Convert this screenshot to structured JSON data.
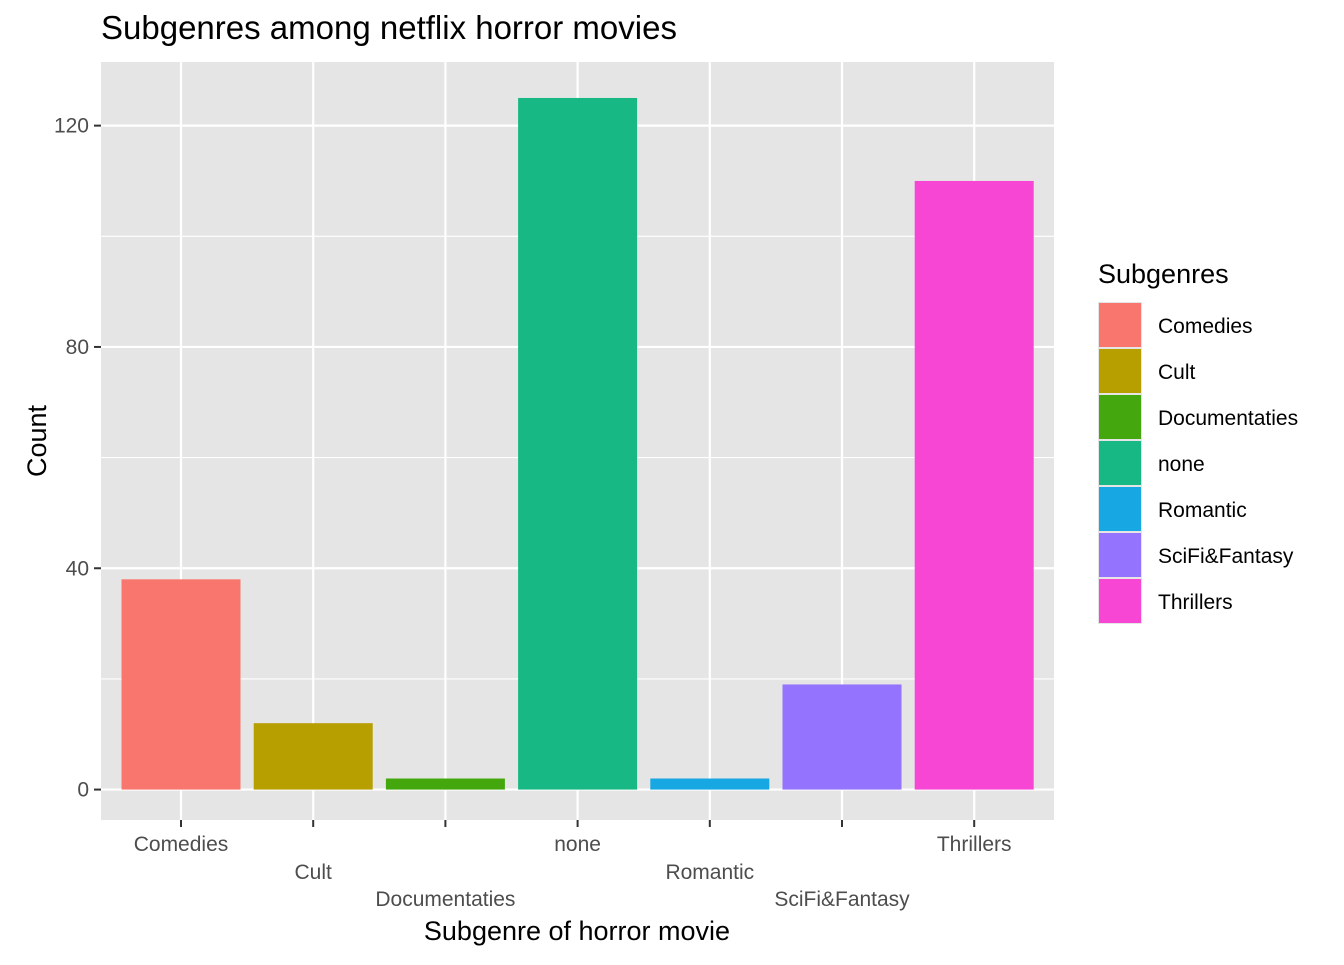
{
  "chart_data": {
    "type": "bar",
    "title": "Subgenres among netflix horror movies",
    "xlabel": "Subgenre of horror movie",
    "ylabel": "Count",
    "categories": [
      "Comedies",
      "Cult",
      "Documentaties",
      "none",
      "Romantic",
      "SciFi&Fantasy",
      "Thrillers"
    ],
    "values": [
      38,
      12,
      2,
      125,
      2,
      19,
      110
    ],
    "colors": [
      "#F8766D",
      "#B79F00",
      "#45A70E",
      "#18B885",
      "#17A8E4",
      "#9473FE",
      "#F646D3"
    ],
    "ylim": [
      -5.5,
      131.5
    ],
    "yticks": [
      0,
      40,
      80,
      120
    ],
    "yticks_labels": [
      "0",
      "40",
      "80",
      "120"
    ],
    "grid": true,
    "panel_background": "#E5E5E5",
    "grid_color": "#FFFFFF",
    "legend": {
      "title": "Subgenres",
      "placement": "right",
      "entries": [
        "Comedies",
        "Cult",
        "Documentaties",
        "none",
        "Romantic",
        "SciFi&Fantasy",
        "Thrillers"
      ]
    }
  }
}
